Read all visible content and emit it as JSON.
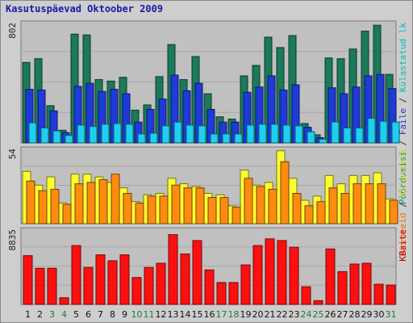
{
  "chart_data": {
    "type": "bar",
    "title": "Kasutuspäevad Oktoober 2009",
    "categories": [
      "1",
      "2",
      "3",
      "4",
      "5",
      "6",
      "7",
      "8",
      "9",
      "10",
      "11",
      "12",
      "13",
      "14",
      "15",
      "16",
      "17",
      "18",
      "19",
      "20",
      "21",
      "22",
      "23",
      "24",
      "25",
      "26",
      "27",
      "28",
      "29",
      "30",
      "31"
    ],
    "weekend_days": [
      3,
      4,
      10,
      11,
      17,
      18,
      24,
      25,
      31
    ],
    "panels": [
      {
        "max_label": "802",
        "ymax": 802,
        "right_label_parts": [
          {
            "text": "Pöördumisi",
            "color": "#008a8a"
          },
          {
            "text": " / ",
            "color": "#333333"
          },
          {
            "text": "Faile",
            "color": "#2a3acc"
          },
          {
            "text": " / ",
            "color": "#333333"
          },
          {
            "text": "Külastatud lk",
            "color": "#00bcbc"
          }
        ],
        "series": [
          {
            "name": "Pöördumisi",
            "color": "#1a7a5a",
            "values": [
              540,
              565,
              250,
              85,
              730,
              725,
              425,
              415,
              440,
              220,
              255,
              445,
              660,
              425,
              580,
              330,
              175,
              160,
              450,
              520,
              710,
              640,
              720,
              130,
              55,
              570,
              565,
              630,
              750,
              790,
              460
            ]
          },
          {
            "name": "Faile",
            "color": "#1e3ad8",
            "values": [
              360,
              355,
              215,
              70,
              380,
              400,
              345,
              360,
              330,
              140,
              225,
              295,
              455,
              350,
              400,
              225,
              140,
              140,
              340,
              375,
              450,
              355,
              390,
              105,
              35,
              370,
              330,
              375,
              450,
              460,
              365
            ]
          },
          {
            "name": "Külastatud lk",
            "color": "#1ed0f0",
            "values": [
              135,
              100,
              80,
              50,
              120,
              110,
              125,
              130,
              125,
              60,
              65,
              115,
              140,
              120,
              115,
              60,
              60,
              60,
              120,
              125,
              125,
              120,
              115,
              75,
              25,
              140,
              100,
              100,
              165,
              145,
              140
            ]
          }
        ]
      },
      {
        "max_label": "54",
        "ymax": 54,
        "right_label_parts": [
          {
            "text": "Arvuteid",
            "color": "#ee7000"
          },
          {
            "text": " / ",
            "color": "#333333"
          },
          {
            "text": "Külastusi",
            "color": "#e8d000"
          }
        ],
        "series": [
          {
            "name": "Külastusi",
            "color": "#ffff30",
            "values": [
              38,
              28,
              34,
              15,
              36,
              36,
              34,
              30,
              26,
              16,
              21,
              22,
              33,
              29,
              27,
              22,
              21,
              13,
              39,
              28,
              30,
              53,
              33,
              17,
              20,
              35,
              29,
              35,
              35,
              37,
              18
            ]
          },
          {
            "name": "Arvuteid",
            "color": "#ff8c10",
            "values": [
              31,
              24,
              25,
              14,
              29,
              30,
              32,
              36,
              22,
              15,
              20,
              20,
              28,
              26,
              26,
              19,
              19,
              12,
              33,
              27,
              25,
              45,
              22,
              13,
              16,
              26,
              22,
              29,
              29,
              29,
              17
            ]
          }
        ]
      },
      {
        "max_label": "8835",
        "ymax": 8835,
        "right_label_parts": [
          {
            "text": "KBaite",
            "color": "#cc0000"
          }
        ],
        "series": [
          {
            "name": "KBaite",
            "color": "#ff1010",
            "values": [
              5800,
              4300,
              4300,
              800,
              7000,
              4400,
              5900,
              5200,
              5900,
              3200,
              4400,
              4900,
              8300,
              6000,
              7600,
              4100,
              2600,
              2600,
              4700,
              7000,
              7800,
              7600,
              6800,
              2100,
              450,
              6600,
              3900,
              4800,
              4900,
              2400,
              2300
            ]
          }
        ]
      }
    ]
  }
}
